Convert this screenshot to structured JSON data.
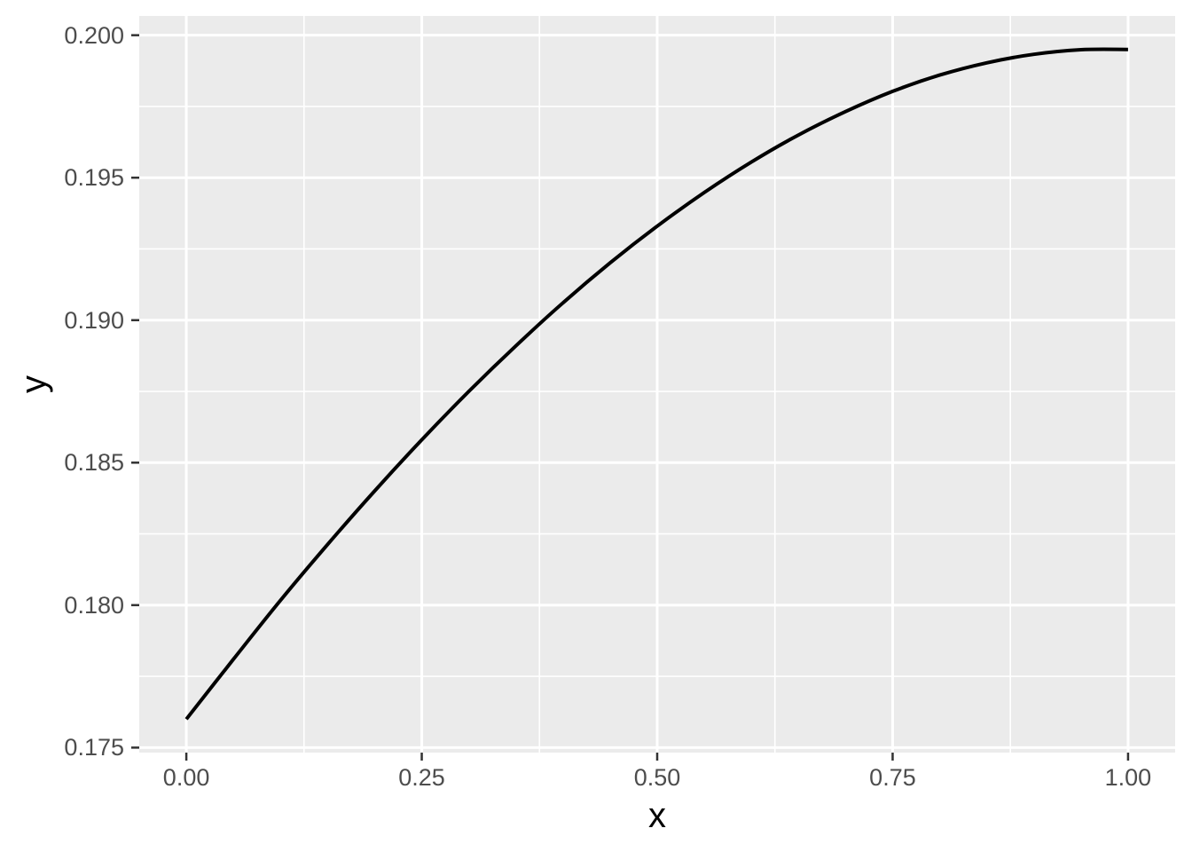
{
  "chart_data": {
    "type": "line",
    "title": "",
    "xlabel": "x",
    "ylabel": "y",
    "series": [
      {
        "name": "y",
        "x": [
          0,
          0.05,
          0.1,
          0.15,
          0.2,
          0.25,
          0.3,
          0.35,
          0.4,
          0.45,
          0.5,
          0.55,
          0.6,
          0.65,
          0.7,
          0.75,
          0.8,
          0.85,
          0.9,
          0.95,
          1.0
        ],
        "y": [
          0.176,
          0.1781,
          0.18017,
          0.18213,
          0.18401,
          0.1858,
          0.1875,
          0.1891,
          0.19061,
          0.19201,
          0.1933,
          0.19448,
          0.19555,
          0.1965,
          0.19732,
          0.19803,
          0.1986,
          0.19903,
          0.19933,
          0.19949,
          0.1995
        ]
      }
    ],
    "xlim": [
      -0.05,
      1.05
    ],
    "ylim": [
      0.174825,
      0.200675
    ],
    "x_ticks": [
      0.0,
      0.25,
      0.5,
      0.75,
      1.0
    ],
    "x_tick_labels": [
      "0.00",
      "0.25",
      "0.50",
      "0.75",
      "1.00"
    ],
    "y_ticks": [
      0.175,
      0.18,
      0.185,
      0.19,
      0.195,
      0.2
    ],
    "y_tick_labels": [
      "0.175",
      "0.180",
      "0.185",
      "0.190",
      "0.195",
      "0.200"
    ],
    "x_minor_ticks": [
      0.125,
      0.375,
      0.625,
      0.875
    ],
    "y_minor_ticks": [
      0.1775,
      0.1825,
      0.1875,
      0.1925,
      0.1975
    ],
    "grid": true,
    "legend_position": "none",
    "style": {
      "panel_background": "#EBEBEB",
      "grid_color": "#FFFFFF",
      "line_color": "#000000",
      "tick_label_color": "#4D4D4D",
      "tick_mark_color": "#333333",
      "axis_title_color": "#000000",
      "outer_background": "#FFFFFF"
    }
  }
}
